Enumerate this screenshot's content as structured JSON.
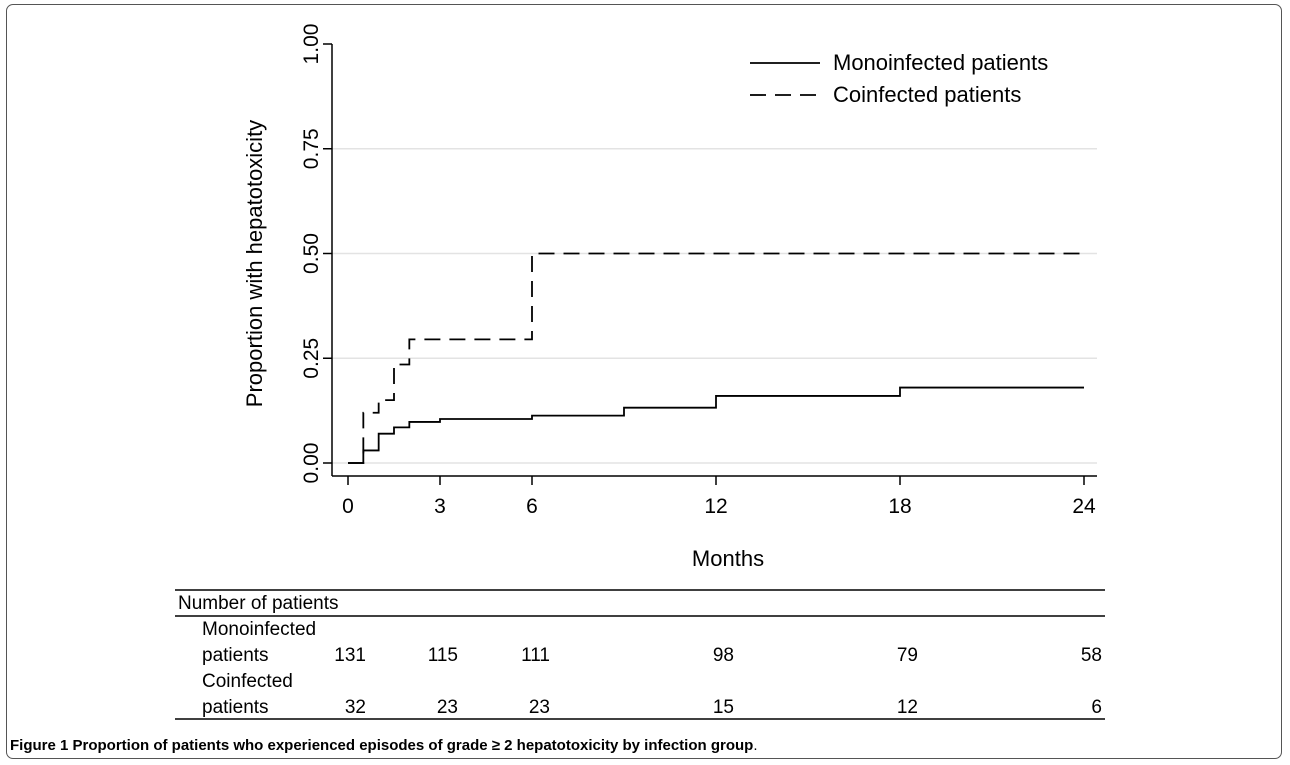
{
  "chart_data": {
    "type": "line",
    "xlabel": "Months",
    "ylabel": "Proportion with hepatotoxicity",
    "xlim": [
      0,
      24
    ],
    "ylim": [
      0,
      1
    ],
    "x_ticks": [
      0,
      3,
      6,
      12,
      18,
      24
    ],
    "x_tick_labels": [
      "0",
      "3",
      "6",
      "12",
      "18",
      "24"
    ],
    "y_ticks": [
      0,
      0.25,
      0.5,
      0.75,
      1.0
    ],
    "y_tick_labels": [
      "0.00",
      "0.25",
      "0.50",
      "0.75",
      "1.00"
    ],
    "grid": "horizontal",
    "legend": "top-right",
    "series": [
      {
        "name": "Monoinfected patients",
        "style": "solid",
        "x": [
          0,
          0.5,
          1,
          1.5,
          2,
          3,
          6,
          9,
          12,
          18,
          24
        ],
        "y": [
          0,
          0.03,
          0.07,
          0.085,
          0.098,
          0.105,
          0.113,
          0.132,
          0.16,
          0.18,
          0.18
        ]
      },
      {
        "name": "Coinfected patients",
        "style": "dashed",
        "x": [
          0,
          0.5,
          1,
          1.5,
          2,
          6,
          24
        ],
        "y": [
          0,
          0.12,
          0.15,
          0.235,
          0.295,
          0.5,
          0.5
        ]
      }
    ],
    "risk_table": {
      "title": "Number of patients",
      "times": [
        0,
        3,
        6,
        12,
        18,
        24
      ],
      "groups": [
        {
          "label_line1": "Monoinfected",
          "label_line2": "patients",
          "counts": [
            "131",
            "115",
            "111",
            "98",
            "79",
            "58"
          ]
        },
        {
          "label_line1": "Coinfected",
          "label_line2": "patients",
          "counts": [
            "32",
            "23",
            "23",
            "15",
            "12",
            "6"
          ]
        }
      ]
    }
  },
  "caption": {
    "bold": "Figure 1 Proportion of patients who experienced episodes of grade ≥ 2 hepatotoxicity by infection group",
    "rest": "."
  }
}
